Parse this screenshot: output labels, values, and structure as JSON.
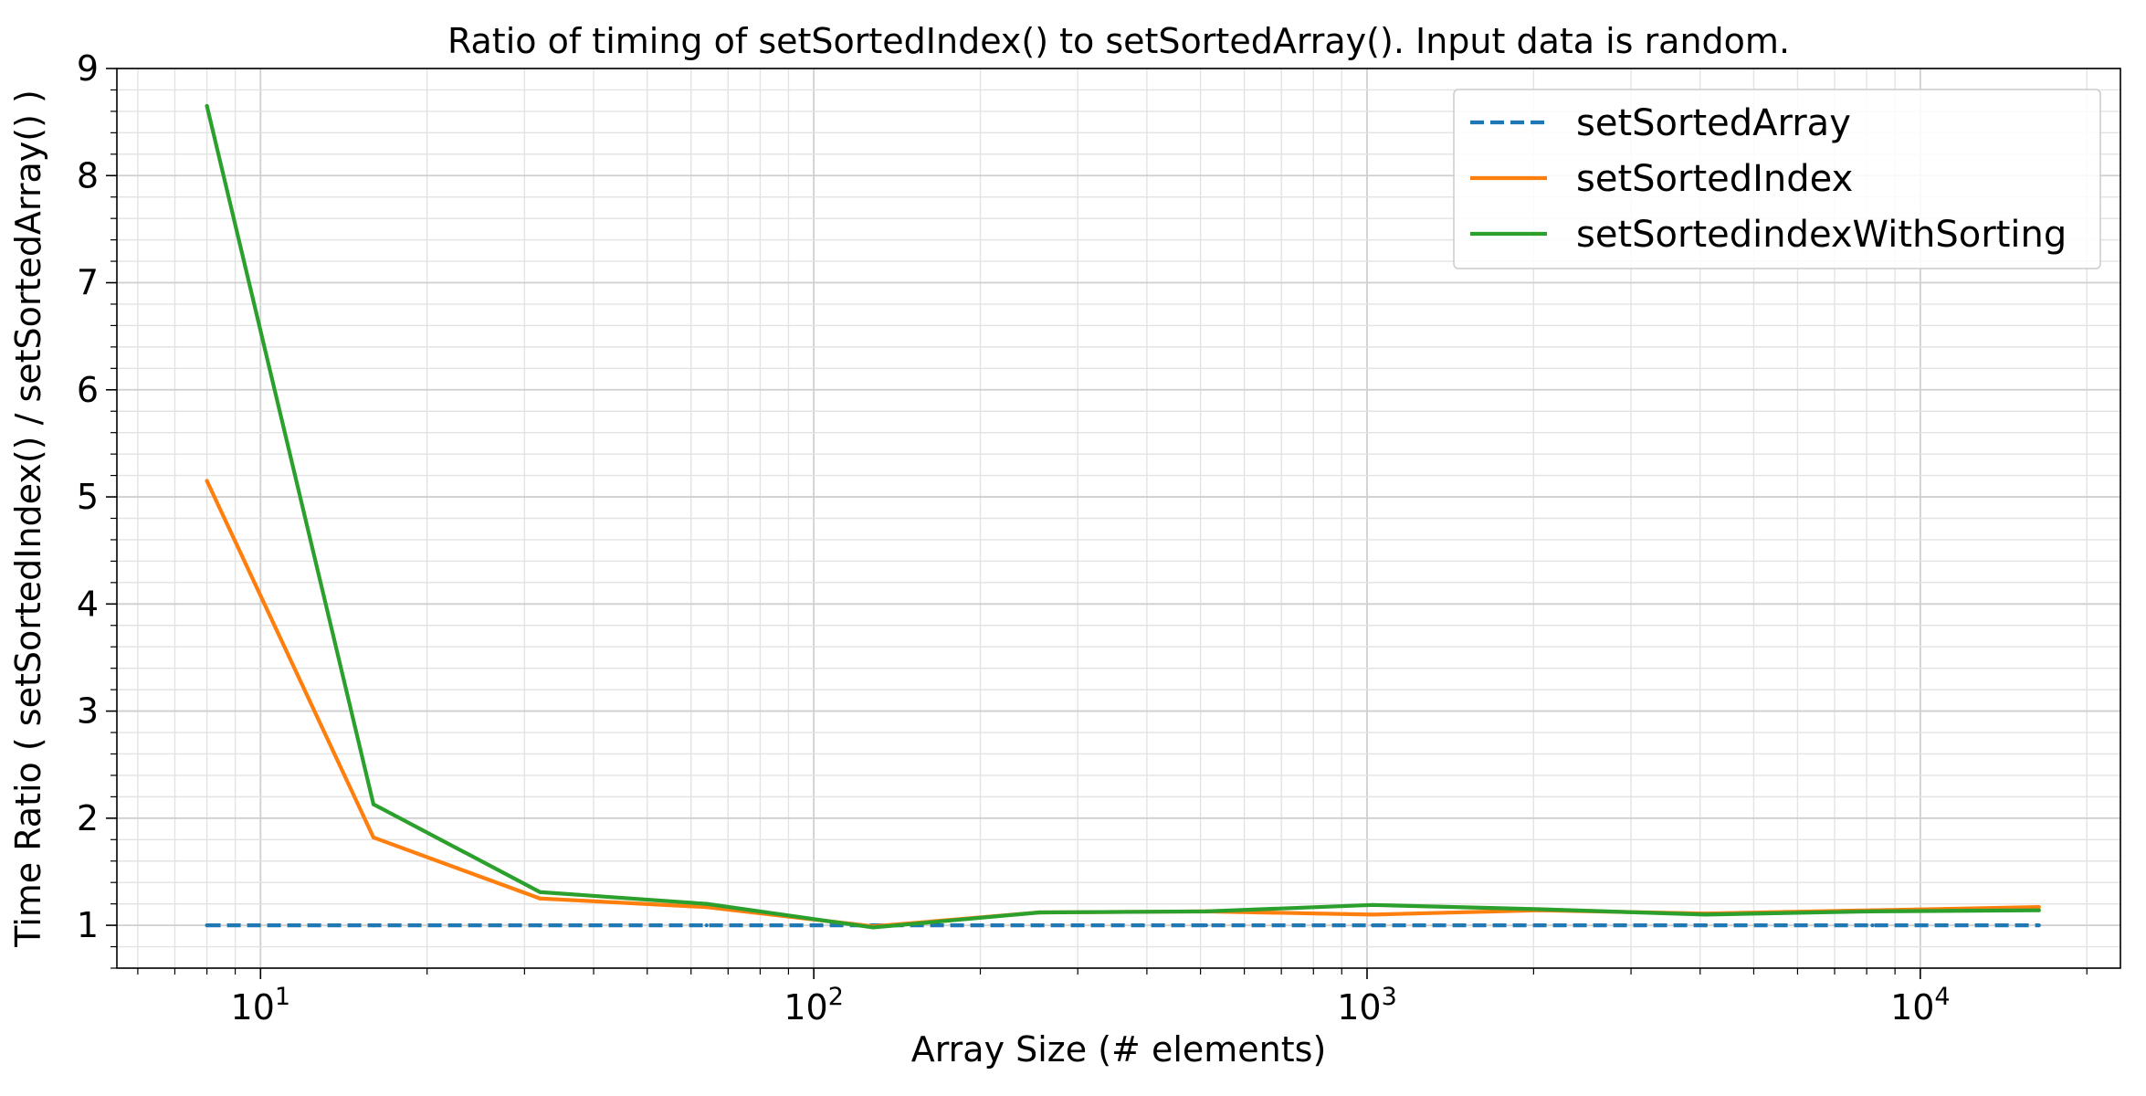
{
  "chart_data": {
    "type": "line",
    "title": "Ratio of timing of setSortedIndex() to setSortedArray(). Input data is random.",
    "xlabel": "Array Size (# elements)",
    "ylabel": "Time Ratio ( setSortedIndex() / setSortedArray() )",
    "xscale": "log",
    "xlim": [
      5.5,
      23000
    ],
    "ylim": [
      0.6,
      9.0
    ],
    "grid": true,
    "minor_grid": true,
    "legend_position": "top-right",
    "x_ticks": [
      {
        "value": 10,
        "base": "10",
        "exp": "1"
      },
      {
        "value": 100,
        "base": "10",
        "exp": "2"
      },
      {
        "value": 1000,
        "base": "10",
        "exp": "3"
      },
      {
        "value": 10000,
        "base": "10",
        "exp": "4"
      }
    ],
    "y_ticks": [
      1,
      2,
      3,
      4,
      5,
      6,
      7,
      8,
      9
    ],
    "x": [
      8,
      16,
      32,
      64,
      128,
      256,
      512,
      1024,
      2048,
      4096,
      8192,
      16384
    ],
    "series": [
      {
        "name": "setSortedArray",
        "color": "#1f77b4",
        "style": "dashed",
        "values": [
          1,
          1,
          1,
          1,
          1,
          1,
          1,
          1,
          1,
          1,
          1,
          1
        ]
      },
      {
        "name": "setSortedIndex",
        "color": "#ff7f0e",
        "style": "solid",
        "values": [
          5.15,
          1.82,
          1.25,
          1.17,
          0.99,
          1.12,
          1.13,
          1.1,
          1.14,
          1.11,
          1.14,
          1.17
        ]
      },
      {
        "name": "setSortedindexWithSorting",
        "color": "#2ca02c",
        "style": "solid",
        "values": [
          8.65,
          2.13,
          1.31,
          1.2,
          0.98,
          1.12,
          1.13,
          1.19,
          1.15,
          1.1,
          1.13,
          1.14
        ]
      }
    ]
  }
}
